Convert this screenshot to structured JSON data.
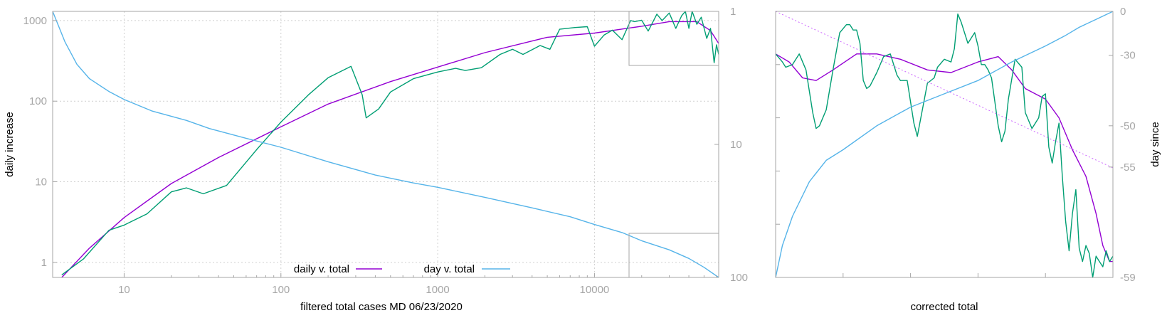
{
  "chart_data": [
    {
      "type": "line",
      "xlabel": "filtered total cases MD 06/23/2020",
      "ylabel": "daily increase",
      "xscale": "log",
      "yscale": "log",
      "y2scale": "log-reversed",
      "xlim": [
        3.5,
        62000
      ],
      "ylim": [
        0.65,
        1300
      ],
      "y2lim": [
        1,
        100
      ],
      "grid": true,
      "legend_position": "bottom-center",
      "x_ticks": [
        10,
        100,
        1000,
        10000
      ],
      "x_tick_labels": [
        "10",
        "100",
        "1000",
        "10000"
      ],
      "y_ticks": [
        1,
        10,
        100,
        1000
      ],
      "y_tick_labels": [
        "1",
        "10",
        "100",
        "1000"
      ],
      "y2_ticks": [
        1,
        10,
        100
      ],
      "y2_tick_labels": [
        "1",
        "10",
        "100"
      ],
      "colors": {
        "daily_fit": "#9400d3",
        "daily_raw": "#009e73",
        "day": "#56b4e9",
        "frame": "#a6a6a6"
      },
      "series": [
        {
          "name": "daily v. total",
          "axis": "y",
          "x": [
            4,
            6,
            10,
            20,
            40,
            100,
            200,
            500,
            1000,
            2000,
            5000,
            10000,
            20000,
            30000,
            45000,
            55000,
            62000
          ],
          "y": [
            0.65,
            1.5,
            3.6,
            9.5,
            20,
            48,
            92,
            175,
            265,
            400,
            620,
            700,
            850,
            970,
            970,
            750,
            520
          ]
        },
        {
          "name": "",
          "axis": "y",
          "x": [
            4,
            5.5,
            8,
            10,
            14,
            20,
            25,
            32,
            45,
            70,
            100,
            150,
            200,
            280,
            330,
            350,
            420,
            500,
            700,
            1000,
            1300,
            1500,
            1900,
            2500,
            3000,
            3500,
            4500,
            5200,
            6000,
            7500,
            9000,
            10000,
            11500,
            13000,
            15000,
            17000,
            18000,
            20000,
            22000,
            25000,
            27000,
            30000,
            33000,
            36000,
            38000,
            40000,
            42000,
            45000,
            48000,
            52000,
            55000,
            58000,
            60000,
            62000
          ],
          "y": [
            0.7,
            1.1,
            2.5,
            2.9,
            4,
            7.5,
            8.4,
            7.1,
            9,
            25,
            55,
            120,
            195,
            270,
            120,
            62,
            80,
            130,
            190,
            230,
            255,
            240,
            260,
            380,
            440,
            380,
            490,
            440,
            780,
            820,
            840,
            480,
            660,
            760,
            580,
            1000,
            970,
            1010,
            740,
            1200,
            1000,
            1240,
            800,
            1150,
            1400,
            800,
            1300,
            900,
            1100,
            600,
            800,
            300,
            500,
            380
          ]
        },
        {
          "name": "day v. total",
          "axis": "y2",
          "x": [
            3.5,
            4.2,
            5,
            6,
            8,
            10,
            15,
            25,
            35,
            60,
            100,
            200,
            400,
            700,
            1000,
            2000,
            4000,
            7000,
            10000,
            15000,
            20000,
            30000,
            40000,
            50000,
            62000
          ],
          "y": [
            1,
            1.7,
            2.5,
            3.2,
            4,
            4.6,
            5.6,
            6.6,
            7.6,
            9,
            10.5,
            13.5,
            17,
            19.5,
            21,
            25,
            30,
            35,
            40,
            46,
            53,
            62,
            72,
            84,
            100
          ]
        }
      ]
    },
    {
      "type": "line",
      "xlabel": "corrected total",
      "ylabel": "day since",
      "y2_ticks": [
        0,
        -30,
        -50,
        -55,
        -59
      ],
      "y2_tick_labels": [
        "0",
        "-30",
        "-50",
        "-55",
        "-59"
      ],
      "x_ticks": [
        0.2,
        0.4,
        0.6,
        0.8
      ],
      "y_ticks": [
        0.2,
        0.4,
        0.6,
        0.8
      ],
      "xlim": [
        0,
        1
      ],
      "ylim": [
        0,
        1
      ],
      "colors": {
        "fit": "#9400d3",
        "raw": "#009e73",
        "day": "#56b4e9",
        "diagonal": "#cc66ff"
      },
      "series": [
        {
          "name": "",
          "x": [
            0,
            0.04,
            0.08,
            0.12,
            0.17,
            0.24,
            0.3,
            0.37,
            0.45,
            0.52,
            0.6,
            0.66,
            0.7,
            0.74,
            0.8,
            0.84,
            0.88,
            0.92,
            0.95,
            0.97,
            0.99,
            1
          ],
          "y": [
            0.84,
            0.81,
            0.75,
            0.74,
            0.78,
            0.84,
            0.84,
            0.82,
            0.78,
            0.77,
            0.81,
            0.83,
            0.78,
            0.71,
            0.67,
            0.6,
            0.48,
            0.38,
            0.24,
            0.12,
            0.06,
            0.06
          ]
        },
        {
          "name": "",
          "x": [
            0,
            0.02,
            0.03,
            0.05,
            0.07,
            0.09,
            0.11,
            0.12,
            0.13,
            0.15,
            0.17,
            0.19,
            0.21,
            0.22,
            0.23,
            0.24,
            0.25,
            0.26,
            0.27,
            0.28,
            0.3,
            0.32,
            0.34,
            0.36,
            0.37,
            0.39,
            0.41,
            0.42,
            0.45,
            0.47,
            0.48,
            0.5,
            0.52,
            0.53,
            0.54,
            0.55,
            0.57,
            0.59,
            0.6,
            0.61,
            0.62,
            0.63,
            0.64,
            0.66,
            0.67,
            0.68,
            0.69,
            0.71,
            0.73,
            0.74,
            0.76,
            0.78,
            0.79,
            0.8,
            0.81,
            0.82,
            0.83,
            0.84,
            0.85,
            0.86,
            0.87,
            0.88,
            0.89,
            0.9,
            0.91,
            0.92,
            0.93,
            0.94,
            0.95,
            0.96,
            0.97,
            0.98,
            0.99,
            1
          ],
          "y": [
            0.84,
            0.81,
            0.79,
            0.8,
            0.84,
            0.78,
            0.62,
            0.56,
            0.57,
            0.63,
            0.78,
            0.92,
            0.95,
            0.95,
            0.93,
            0.93,
            0.88,
            0.74,
            0.71,
            0.72,
            0.77,
            0.83,
            0.84,
            0.76,
            0.74,
            0.74,
            0.58,
            0.53,
            0.73,
            0.75,
            0.79,
            0.82,
            0.81,
            0.86,
            0.99,
            0.96,
            0.88,
            0.92,
            0.87,
            0.8,
            0.8,
            0.78,
            0.75,
            0.57,
            0.51,
            0.55,
            0.67,
            0.82,
            0.79,
            0.62,
            0.56,
            0.6,
            0.68,
            0.69,
            0.49,
            0.43,
            0.51,
            0.58,
            0.38,
            0.21,
            0.1,
            0.24,
            0.33,
            0.11,
            0.06,
            0.12,
            0.09,
            0.0,
            0.08,
            0.06,
            0.04,
            0.1,
            0.06,
            0.08
          ]
        },
        {
          "name": "",
          "x": [
            0,
            0.02,
            0.05,
            0.1,
            0.15,
            0.2,
            0.3,
            0.4,
            0.5,
            0.6,
            0.7,
            0.8,
            0.86,
            0.9,
            0.95,
            1
          ],
          "y": [
            0,
            0.12,
            0.23,
            0.36,
            0.44,
            0.48,
            0.57,
            0.64,
            0.69,
            0.74,
            0.81,
            0.87,
            0.91,
            0.94,
            0.97,
            1
          ]
        }
      ]
    }
  ]
}
